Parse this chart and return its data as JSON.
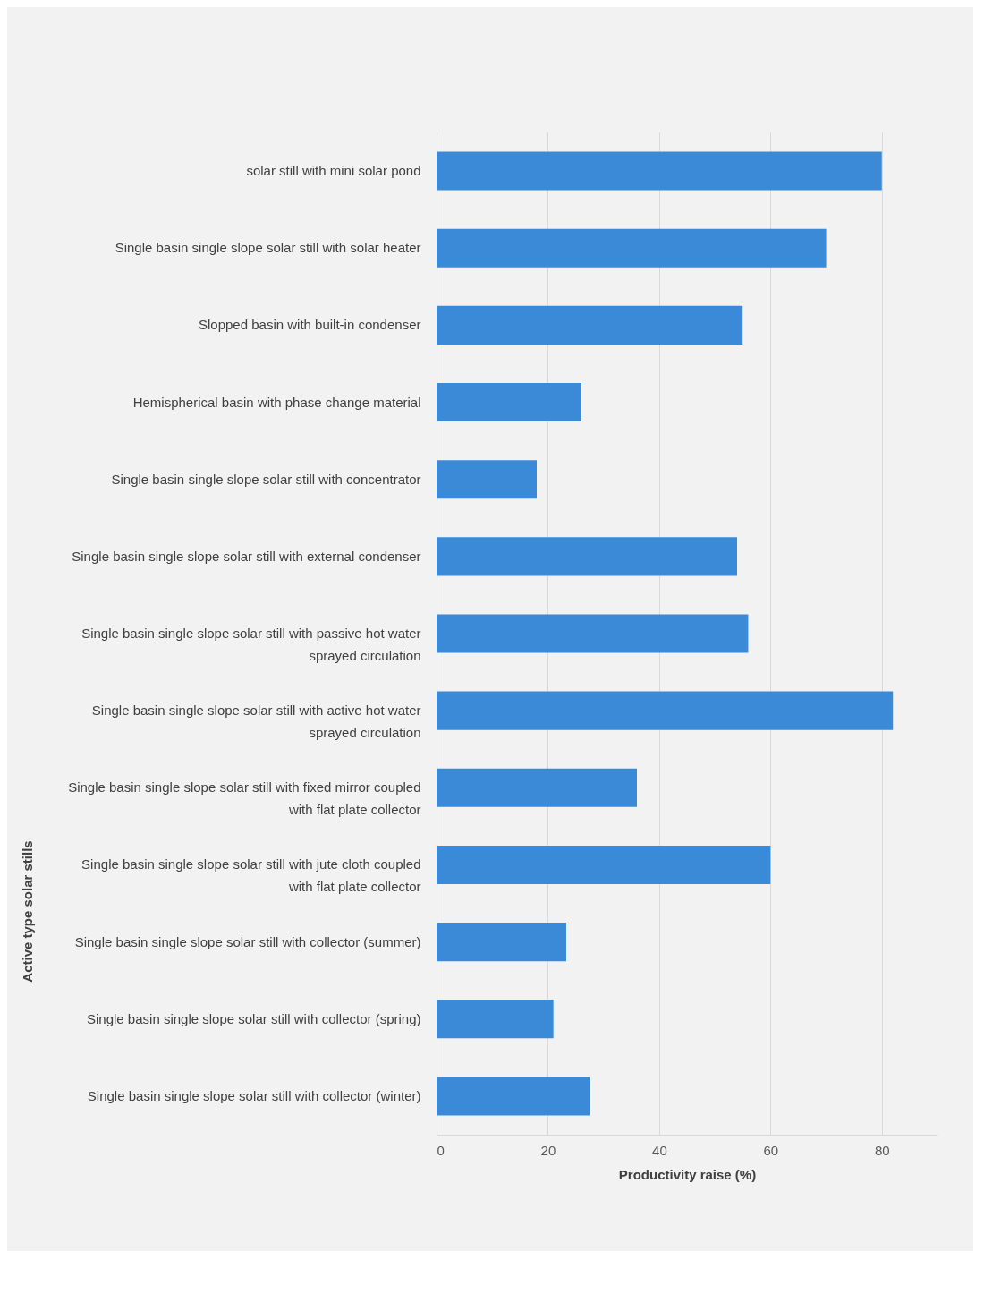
{
  "chart_data": {
    "type": "bar",
    "orientation": "horizontal",
    "xlabel": "Productivity raise (%)",
    "ylabel": "Active type solar stills",
    "categories": [
      "solar still with mini solar pond",
      "Single basin single slope solar still with solar heater",
      "Slopped basin with built-in condenser",
      "Hemispherical basin with phase change material",
      "Single basin single slope solar still with concentrator",
      "Single basin single slope solar still with external condenser",
      "Single basin single slope solar still with passive hot water sprayed circulation",
      "Single basin single slope solar still with active hot water sprayed circulation",
      "Single basin single slope solar still with fixed mirror coupled with flat plate collector",
      "Single basin single slope solar still with jute cloth coupled with flat plate collector",
      "Single basin single slope solar still with collector (summer)",
      "Single basin single slope solar still with collector (spring)",
      "Single basin single slope solar still with collector (winter)"
    ],
    "values": [
      80,
      70,
      55,
      26,
      18,
      54,
      56,
      82,
      36,
      60,
      23.3,
      21,
      27.5
    ],
    "color": "#3a8ad8",
    "xlim": [
      0,
      90
    ],
    "xticks": [
      0,
      20,
      40,
      60,
      80
    ],
    "grid": "x"
  }
}
